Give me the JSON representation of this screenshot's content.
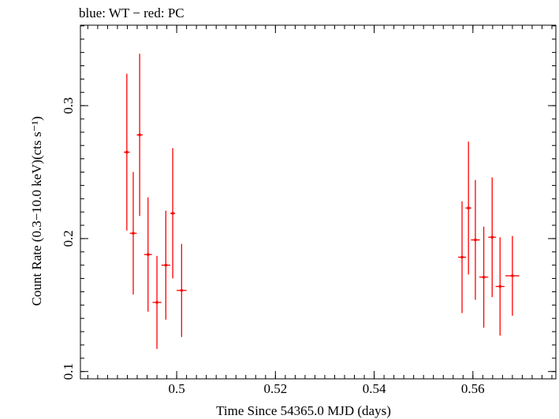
{
  "chart_data": {
    "type": "scatter",
    "title": "blue: WT − red: PC",
    "xlabel": "Time Since 54365.0 MJD (days)",
    "ylabel": "Count Rate (0.3−10.0 keV)(cts s⁻¹)",
    "xlim": [
      0.4805,
      0.5768
    ],
    "ylim": [
      0.0945,
      0.3605
    ],
    "xticks": [
      {
        "value": 0.5,
        "label": "0.5"
      },
      {
        "value": 0.52,
        "label": "0.52"
      },
      {
        "value": 0.54,
        "label": "0.54"
      },
      {
        "value": 0.56,
        "label": "0.56"
      }
    ],
    "yticks": [
      {
        "value": 0.1,
        "label": "0.1"
      },
      {
        "value": 0.2,
        "label": "0.2"
      },
      {
        "value": 0.3,
        "label": "0.3"
      }
    ],
    "x_minor_step": 0.002,
    "y_minor_step": 0.01,
    "grid": false,
    "legend": "none",
    "series": [
      {
        "color": "#ff0000",
        "points": [
          {
            "x": 0.4899,
            "y": 0.265,
            "xerr": 0.0006,
            "yerr": 0.059
          },
          {
            "x": 0.4912,
            "y": 0.204,
            "xerr": 0.0007,
            "yerr": 0.046
          },
          {
            "x": 0.4925,
            "y": 0.278,
            "xerr": 0.0006,
            "yerr": 0.061
          },
          {
            "x": 0.4942,
            "y": 0.188,
            "xerr": 0.0008,
            "yerr": 0.043
          },
          {
            "x": 0.496,
            "y": 0.152,
            "xerr": 0.0009,
            "yerr": 0.035
          },
          {
            "x": 0.4978,
            "y": 0.18,
            "xerr": 0.0009,
            "yerr": 0.041
          },
          {
            "x": 0.4992,
            "y": 0.219,
            "xerr": 0.0005,
            "yerr": 0.049
          },
          {
            "x": 0.501,
            "y": 0.161,
            "xerr": 0.001,
            "yerr": 0.035
          },
          {
            "x": 0.5578,
            "y": 0.186,
            "xerr": 0.0008,
            "yerr": 0.042
          },
          {
            "x": 0.5591,
            "y": 0.223,
            "xerr": 0.0006,
            "yerr": 0.05
          },
          {
            "x": 0.5605,
            "y": 0.199,
            "xerr": 0.0009,
            "yerr": 0.045
          },
          {
            "x": 0.5622,
            "y": 0.171,
            "xerr": 0.0009,
            "yerr": 0.038
          },
          {
            "x": 0.5639,
            "y": 0.201,
            "xerr": 0.0008,
            "yerr": 0.045
          },
          {
            "x": 0.5655,
            "y": 0.164,
            "xerr": 0.0009,
            "yerr": 0.037
          },
          {
            "x": 0.568,
            "y": 0.172,
            "xerr": 0.0014,
            "yerr": 0.03
          }
        ]
      }
    ]
  }
}
